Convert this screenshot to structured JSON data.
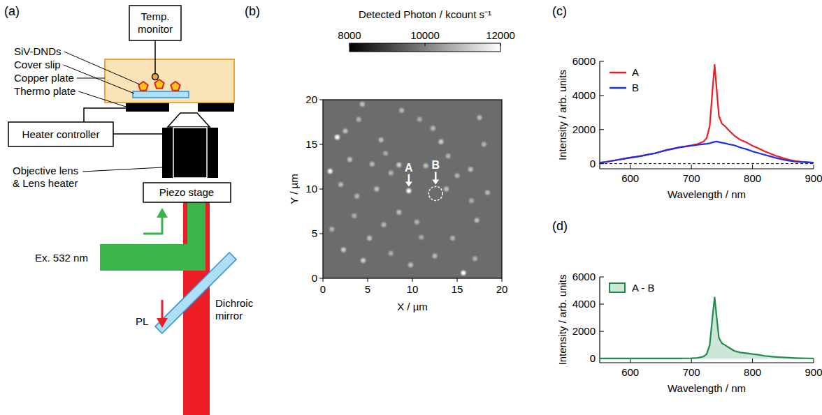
{
  "diagram": {
    "label": "(a)",
    "nodes": [
      {
        "label": "Temp. monitor"
      },
      {
        "label": "SiV-DNDs"
      },
      {
        "label": "Cover slip"
      },
      {
        "label": "Copper plate"
      },
      {
        "label": "Thermo plate"
      },
      {
        "label": "Heater controller"
      },
      {
        "label": "Objective lens & Lens heater"
      },
      {
        "label": "Piezo stage"
      },
      {
        "label": "Ex. 532 nm"
      },
      {
        "label": "Dichroic mirror"
      },
      {
        "label": "PL"
      }
    ]
  },
  "chart_data": [
    {
      "type": "heatmap",
      "label": "(b)",
      "xlabel": "X / µm",
      "ylabel": "Y / µm",
      "xlim": [
        0,
        20
      ],
      "ylim": [
        0,
        20
      ],
      "xticks": [
        0,
        5,
        10,
        15,
        20
      ],
      "yticks": [
        0,
        5,
        10,
        15,
        20
      ],
      "colorbar": {
        "title": "Detected Photon / kcount s⁻¹",
        "range": [
          8000,
          12000
        ],
        "ticks": [
          8000,
          10000,
          12000
        ]
      },
      "background": 9700,
      "spots": {
        "x": [
          0.8,
          1.6,
          2.5,
          2.0,
          3.0,
          4.0,
          4.4,
          3.5,
          2.3,
          1.0,
          5.5,
          6.5,
          7.0,
          6.0,
          7.6,
          8.5,
          9.6,
          8.5,
          6.8,
          5.2,
          4.5,
          7.6,
          9.8,
          11.0,
          10.5,
          11.5,
          12.3,
          13.2,
          14.0,
          13.8,
          15.0,
          16.5,
          17.5,
          18.0,
          16.6,
          17.2,
          18.4,
          14.5,
          12.5,
          15.7,
          17.0,
          10.8,
          8.8,
          3.8
        ],
        "y": [
          12.0,
          15.8,
          16.5,
          10.5,
          13.3,
          17.8,
          19.5,
          7.0,
          3.2,
          5.5,
          12.8,
          15.5,
          14.0,
          10.0,
          11.8,
          12.7,
          9.8,
          7.4,
          6.0,
          4.5,
          2.0,
          2.8,
          1.5,
          4.6,
          6.3,
          12.6,
          16.8,
          15.3,
          13.7,
          10.0,
          11.5,
          12.2,
          18.0,
          15.0,
          8.7,
          6.5,
          9.6,
          4.5,
          2.5,
          0.6,
          2.2,
          17.8,
          18.8,
          9.2
        ],
        "values": [
          11800,
          11900,
          11000,
          10900,
          11000,
          10800,
          11000,
          10700,
          11200,
          10800,
          10900,
          11000,
          10700,
          11000,
          10800,
          11200,
          11900,
          11000,
          10800,
          11000,
          11200,
          10700,
          11000,
          10700,
          10800,
          11000,
          10900,
          11200,
          10800,
          11000,
          10800,
          11000,
          10900,
          10800,
          10700,
          11000,
          10900,
          10800,
          10900,
          12000,
          10800,
          10700,
          10900,
          10800
        ]
      },
      "annotations": [
        {
          "text": "A",
          "x": 9.6,
          "y": 9.8,
          "marker": "arrow"
        },
        {
          "text": "B",
          "x": 12.6,
          "y": 9.5,
          "marker": "circle"
        }
      ]
    },
    {
      "type": "line",
      "label": "(c)",
      "xlabel": "Wavelength / nm",
      "ylabel": "Intensity / arb. units",
      "x": [
        550,
        560,
        570,
        580,
        590,
        600,
        610,
        620,
        630,
        640,
        650,
        660,
        670,
        680,
        690,
        700,
        710,
        720,
        725,
        730,
        735,
        738,
        741,
        745,
        750,
        755,
        760,
        770,
        780,
        790,
        800,
        810,
        820,
        830,
        840,
        850,
        860,
        870,
        880,
        890,
        900
      ],
      "series": [
        {
          "name": "A",
          "color": "#ee1c25",
          "values": [
            60,
            110,
            170,
            230,
            300,
            360,
            410,
            470,
            550,
            610,
            710,
            810,
            880,
            960,
            1020,
            1080,
            1150,
            1300,
            1500,
            2200,
            4500,
            5800,
            4500,
            2800,
            2350,
            2200,
            2000,
            1650,
            1400,
            1250,
            1050,
            900,
            720,
            580,
            440,
            330,
            230,
            160,
            120,
            90,
            60
          ]
        },
        {
          "name": "B",
          "color": "#1c2de8",
          "values": [
            50,
            100,
            160,
            220,
            290,
            350,
            400,
            460,
            540,
            600,
            700,
            800,
            870,
            950,
            1000,
            1050,
            1100,
            1150,
            1170,
            1200,
            1250,
            1280,
            1300,
            1270,
            1230,
            1200,
            1150,
            1080,
            950,
            850,
            720,
            620,
            520,
            420,
            320,
            240,
            170,
            120,
            90,
            70,
            50
          ]
        }
      ],
      "xlim": [
        550,
        900
      ],
      "ylim": [
        -300,
        6000
      ],
      "xticks": [
        600,
        700,
        800,
        900
      ],
      "yticks": [
        0,
        2000,
        4000,
        6000
      ],
      "reference_lines": [
        {
          "value": 0,
          "line_style": "dashed"
        }
      ],
      "legend": "top-left"
    },
    {
      "type": "area",
      "label": "(d)",
      "xlabel": "Wavelength / nm",
      "ylabel": "Intensity / arb. units",
      "x": [
        550,
        560,
        570,
        580,
        590,
        600,
        610,
        620,
        630,
        640,
        650,
        660,
        670,
        680,
        690,
        700,
        710,
        720,
        725,
        730,
        735,
        738,
        741,
        745,
        750,
        755,
        760,
        770,
        780,
        790,
        800,
        810,
        820,
        830,
        840,
        850,
        860,
        870,
        880,
        890,
        900
      ],
      "series": [
        {
          "name": "A - B",
          "color": "#1e8c4a",
          "values": [
            10,
            10,
            10,
            10,
            10,
            10,
            10,
            10,
            10,
            10,
            10,
            10,
            10,
            10,
            20,
            30,
            50,
            150,
            330,
            1000,
            3250,
            4500,
            3200,
            1530,
            1120,
            1000,
            850,
            570,
            450,
            400,
            330,
            280,
            200,
            150,
            120,
            90,
            60,
            40,
            30,
            20,
            10
          ]
        }
      ],
      "xlim": [
        550,
        900
      ],
      "ylim": [
        -300,
        6000
      ],
      "xticks": [
        600,
        700,
        800,
        900
      ],
      "yticks": [
        0,
        2000,
        4000,
        6000
      ],
      "legend": "top-left"
    }
  ]
}
